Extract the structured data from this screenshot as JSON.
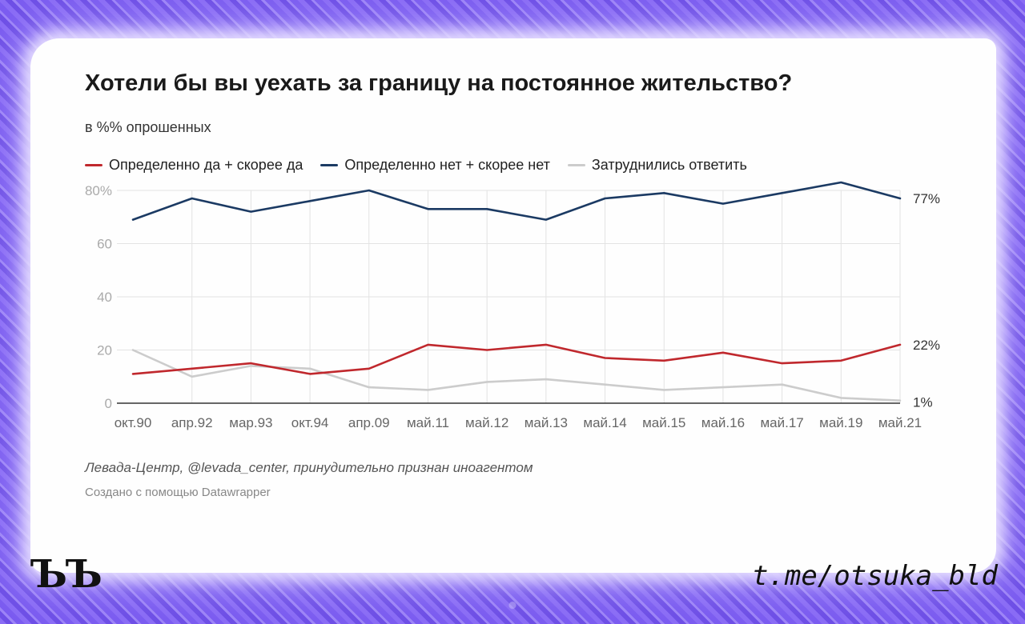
{
  "title": "Хотели бы вы уехать за границу на постоянное жительство?",
  "subtitle": "в %% опрошенных",
  "source": "Левада-Центр, @levada_center, принудительно признан иноагентом",
  "credit": "Создано с помощью Datawrapper",
  "logo": "ЪЪ",
  "handle": "t.me/otsuka_bld",
  "colors": {
    "yes": "#c0282d",
    "no": "#1b3a63",
    "unsure": "#cccccc",
    "grid": "#e3e3e3",
    "axis": "#333333",
    "tick": "#aaaaaa"
  },
  "chart_data": {
    "type": "line",
    "categories": [
      "окт.90",
      "апр.92",
      "мар.93",
      "окт.94",
      "апр.09",
      "май.11",
      "май.12",
      "май.13",
      "май.14",
      "май.15",
      "май.16",
      "май.17",
      "май.19",
      "май.21"
    ],
    "series": [
      {
        "name": "Определенно да + скорее да",
        "color": "#c0282d",
        "values": [
          11,
          13,
          15,
          11,
          13,
          22,
          20,
          22,
          17,
          16,
          19,
          15,
          16,
          22
        ],
        "end_label": "22%"
      },
      {
        "name": "Определенно нет + скорее нет",
        "color": "#1b3a63",
        "values": [
          69,
          77,
          72,
          76,
          80,
          73,
          73,
          69,
          77,
          79,
          75,
          79,
          83,
          77
        ],
        "end_label": "77%"
      },
      {
        "name": "Затруднились ответить",
        "color": "#cccccc",
        "values": [
          20,
          10,
          14,
          13,
          6,
          5,
          8,
          9,
          7,
          5,
          6,
          7,
          2,
          1
        ],
        "end_label": "1%"
      }
    ],
    "y_ticks": [
      "80%",
      "60",
      "40",
      "20",
      "0"
    ],
    "y_tick_values": [
      80,
      60,
      40,
      20,
      0
    ],
    "ylim": [
      0,
      80
    ],
    "grid": true,
    "legend_position": "top-left"
  }
}
